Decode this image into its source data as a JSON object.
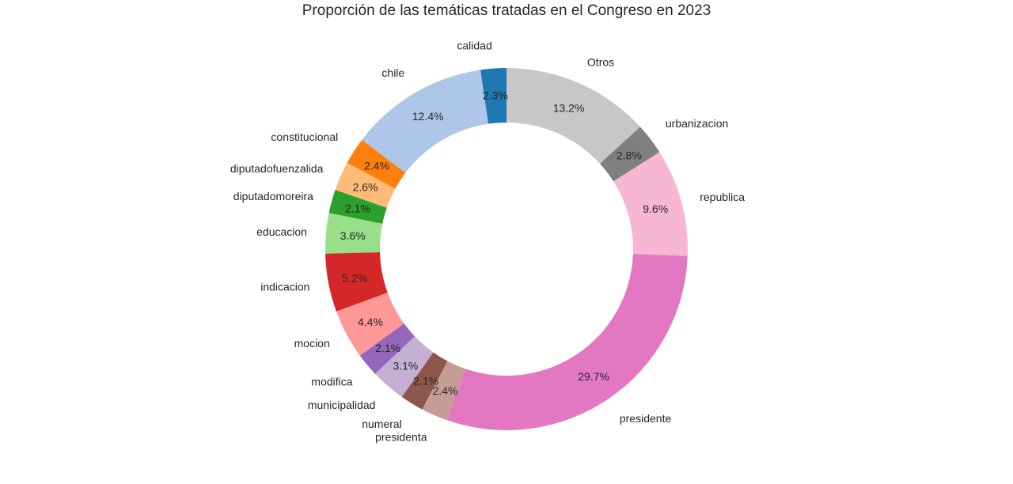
{
  "chart_data": {
    "type": "pie",
    "variant": "donut",
    "title": "Proporción de las temáticas tratadas en el Congreso en 2023",
    "start_angle_deg": 90,
    "direction": "counterclockwise",
    "slices": [
      {
        "label": "calidad",
        "value": 2.3,
        "pct_label": "2.3%",
        "color": "#1f77b4"
      },
      {
        "label": "chile",
        "value": 12.4,
        "pct_label": "12.4%",
        "color": "#aec7e8"
      },
      {
        "label": "constitucional",
        "value": 2.4,
        "pct_label": "2.4%",
        "color": "#ff7f0e"
      },
      {
        "label": "diputadofuenzalida",
        "value": 2.6,
        "pct_label": "2.6%",
        "color": "#ffbb78"
      },
      {
        "label": "diputadomoreira",
        "value": 2.1,
        "pct_label": "2.1%",
        "color": "#2ca02c"
      },
      {
        "label": "educacion",
        "value": 3.6,
        "pct_label": "3.6%",
        "color": "#98df8a"
      },
      {
        "label": "indicacion",
        "value": 5.2,
        "pct_label": "5.2%",
        "color": "#d62728"
      },
      {
        "label": "mocion",
        "value": 4.4,
        "pct_label": "4.4%",
        "color": "#ff9896"
      },
      {
        "label": "modifica",
        "value": 2.1,
        "pct_label": "2.1%",
        "color": "#9467bd"
      },
      {
        "label": "municipalidad",
        "value": 3.1,
        "pct_label": "3.1%",
        "color": "#c5b0d5"
      },
      {
        "label": "numeral",
        "value": 2.1,
        "pct_label": "2.1%",
        "color": "#8c564b"
      },
      {
        "label": "presidenta",
        "value": 2.4,
        "pct_label": "2.4%",
        "color": "#c49c94"
      },
      {
        "label": "presidente",
        "value": 29.7,
        "pct_label": "29.7%",
        "color": "#e377c2"
      },
      {
        "label": "republica",
        "value": 9.6,
        "pct_label": "9.6%",
        "color": "#f7b6d2"
      },
      {
        "label": "urbanizacion",
        "value": 2.8,
        "pct_label": "2.8%",
        "color": "#7f7f7f"
      },
      {
        "label": "Otros",
        "value": 13.2,
        "pct_label": "13.2%",
        "color": "#c7c7c7"
      }
    ]
  }
}
